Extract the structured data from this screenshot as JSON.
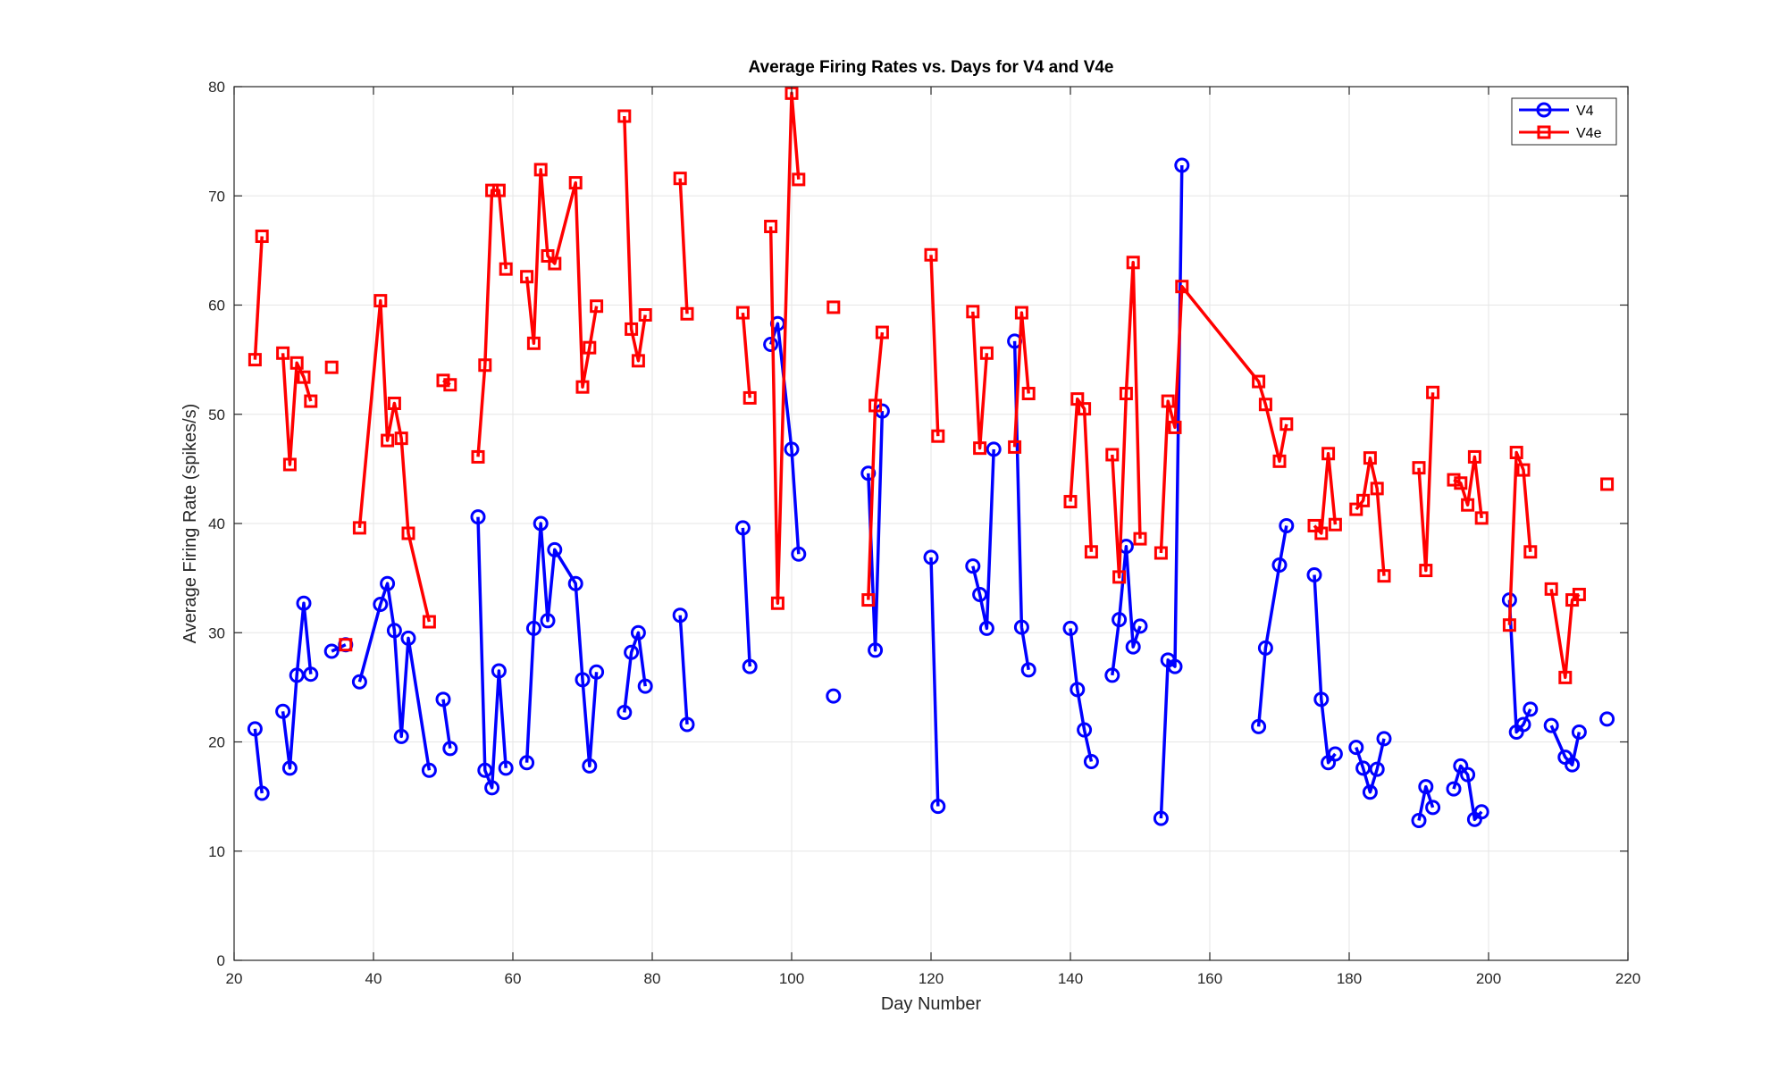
{
  "chart_data": {
    "type": "line",
    "title": "Average Firing Rates vs. Days for V4 and V4e",
    "xlabel": "Day Number",
    "ylabel": "Average Firing Rate (spikes/s)",
    "xlim": [
      20,
      220
    ],
    "ylim": [
      0,
      80
    ],
    "xticks": [
      20,
      40,
      60,
      80,
      100,
      120,
      140,
      160,
      180,
      200,
      220
    ],
    "yticks": [
      0,
      10,
      20,
      30,
      40,
      50,
      60,
      70,
      80
    ],
    "grid": true,
    "legend_position": "top-right",
    "series": [
      {
        "name": "V4",
        "color": "#0000ff",
        "marker": "circle",
        "segments": [
          [
            [
              23,
              21.2
            ],
            [
              24,
              15.3
            ]
          ],
          [
            [
              27,
              22.8
            ],
            [
              28,
              17.6
            ],
            [
              29,
              26.1
            ],
            [
              30,
              32.7
            ],
            [
              31,
              26.2
            ]
          ],
          [
            [
              34,
              28.3
            ],
            [
              36,
              28.9
            ]
          ],
          [
            [
              38,
              25.5
            ],
            [
              41,
              32.6
            ],
            [
              42,
              34.5
            ],
            [
              43,
              30.2
            ],
            [
              44,
              20.5
            ],
            [
              45,
              29.5
            ],
            [
              48,
              17.4
            ]
          ],
          [
            [
              50,
              23.9
            ],
            [
              51,
              19.4
            ]
          ],
          [
            [
              55,
              40.6
            ],
            [
              56,
              17.4
            ],
            [
              57,
              15.8
            ],
            [
              58,
              26.5
            ],
            [
              59,
              17.6
            ]
          ],
          [
            [
              62,
              18.1
            ],
            [
              63,
              30.4
            ],
            [
              64,
              40.0
            ],
            [
              65,
              31.1
            ],
            [
              66,
              37.6
            ],
            [
              69,
              34.5
            ],
            [
              70,
              25.7
            ],
            [
              71,
              17.8
            ],
            [
              72,
              26.4
            ]
          ],
          [
            [
              76,
              22.7
            ],
            [
              77,
              28.2
            ],
            [
              78,
              30.0
            ],
            [
              79,
              25.1
            ]
          ],
          [
            [
              84,
              31.6
            ],
            [
              85,
              21.6
            ]
          ],
          [
            [
              93,
              39.6
            ],
            [
              94,
              26.9
            ]
          ],
          [
            [
              97,
              56.4
            ],
            [
              98,
              58.3
            ],
            [
              100,
              46.8
            ],
            [
              101,
              37.2
            ]
          ],
          [
            [
              106,
              24.2
            ]
          ],
          [
            [
              111,
              44.6
            ],
            [
              112,
              28.4
            ],
            [
              113,
              50.3
            ]
          ],
          [
            [
              120,
              36.9
            ],
            [
              121,
              14.1
            ]
          ],
          [
            [
              126,
              36.1
            ],
            [
              127,
              33.5
            ],
            [
              128,
              30.4
            ],
            [
              129,
              46.8
            ]
          ],
          [
            [
              132,
              56.7
            ],
            [
              133,
              30.5
            ],
            [
              134,
              26.6
            ]
          ],
          [
            [
              140,
              30.4
            ],
            [
              141,
              24.8
            ],
            [
              142,
              21.1
            ],
            [
              143,
              18.2
            ]
          ],
          [
            [
              146,
              26.1
            ],
            [
              147,
              31.2
            ],
            [
              148,
              37.9
            ],
            [
              149,
              28.7
            ],
            [
              150,
              30.6
            ]
          ],
          [
            [
              153,
              13.0
            ],
            [
              154,
              27.5
            ],
            [
              155,
              26.9
            ],
            [
              156,
              72.8
            ]
          ],
          [
            [
              167,
              21.4
            ],
            [
              168,
              28.6
            ],
            [
              170,
              36.2
            ],
            [
              171,
              39.8
            ]
          ],
          [
            [
              175,
              35.3
            ],
            [
              176,
              23.9
            ],
            [
              177,
              18.1
            ],
            [
              178,
              18.9
            ]
          ],
          [
            [
              181,
              19.5
            ],
            [
              182,
              17.6
            ],
            [
              183,
              15.4
            ],
            [
              184,
              17.5
            ],
            [
              185,
              20.3
            ]
          ],
          [
            [
              190,
              12.8
            ],
            [
              191,
              15.9
            ],
            [
              192,
              14.0
            ]
          ],
          [
            [
              195,
              15.7
            ],
            [
              196,
              17.8
            ],
            [
              197,
              17.0
            ],
            [
              198,
              12.9
            ],
            [
              199,
              13.6
            ]
          ],
          [
            [
              203,
              33.0
            ],
            [
              204,
              20.9
            ],
            [
              205,
              21.6
            ],
            [
              206,
              23.0
            ]
          ],
          [
            [
              209,
              21.5
            ],
            [
              211,
              18.6
            ],
            [
              212,
              17.9
            ],
            [
              213,
              20.9
            ]
          ],
          [
            [
              217,
              22.1
            ]
          ]
        ]
      },
      {
        "name": "V4e",
        "color": "#ff0000",
        "marker": "square",
        "segments": [
          [
            [
              23,
              55.0
            ],
            [
              24,
              66.3
            ]
          ],
          [
            [
              27,
              55.6
            ],
            [
              28,
              45.4
            ],
            [
              29,
              54.7
            ],
            [
              30,
              53.4
            ],
            [
              31,
              51.2
            ]
          ],
          [
            [
              34,
              54.3
            ]
          ],
          [
            [
              36,
              28.9
            ]
          ],
          [
            [
              38,
              39.6
            ],
            [
              41,
              60.4
            ],
            [
              42,
              47.6
            ],
            [
              43,
              51.0
            ],
            [
              44,
              47.8
            ],
            [
              45,
              39.1
            ],
            [
              48,
              31.0
            ]
          ],
          [
            [
              50,
              53.1
            ],
            [
              51,
              52.7
            ]
          ],
          [
            [
              55,
              46.1
            ],
            [
              56,
              54.5
            ],
            [
              57,
              70.5
            ],
            [
              58,
              70.5
            ],
            [
              59,
              63.3
            ]
          ],
          [
            [
              62,
              62.6
            ],
            [
              63,
              56.5
            ],
            [
              64,
              72.4
            ],
            [
              65,
              64.5
            ],
            [
              66,
              63.8
            ],
            [
              69,
              71.2
            ],
            [
              70,
              52.5
            ],
            [
              71,
              56.1
            ],
            [
              72,
              59.9
            ]
          ],
          [
            [
              76,
              77.3
            ],
            [
              77,
              57.8
            ],
            [
              78,
              54.9
            ],
            [
              79,
              59.1
            ]
          ],
          [
            [
              84,
              71.6
            ],
            [
              85,
              59.2
            ]
          ],
          [
            [
              93,
              59.3
            ],
            [
              94,
              51.5
            ]
          ],
          [
            [
              97,
              67.2
            ],
            [
              98,
              32.7
            ],
            [
              100,
              79.4
            ],
            [
              101,
              71.5
            ]
          ],
          [
            [
              106,
              59.8
            ]
          ],
          [
            [
              111,
              33.0
            ],
            [
              112,
              50.8
            ],
            [
              113,
              57.5
            ]
          ],
          [
            [
              120,
              64.6
            ],
            [
              121,
              48.0
            ]
          ],
          [
            [
              126,
              59.4
            ],
            [
              127,
              46.9
            ],
            [
              128,
              55.6
            ]
          ],
          [
            [
              132,
              47.0
            ],
            [
              133,
              59.3
            ],
            [
              134,
              51.9
            ]
          ],
          [
            [
              140,
              42.0
            ],
            [
              141,
              51.4
            ],
            [
              142,
              50.5
            ],
            [
              143,
              37.4
            ]
          ],
          [
            [
              146,
              46.3
            ],
            [
              147,
              35.1
            ],
            [
              148,
              51.9
            ],
            [
              149,
              63.9
            ],
            [
              150,
              38.6
            ]
          ],
          [
            [
              153,
              37.3
            ],
            [
              154,
              51.2
            ],
            [
              155,
              48.8
            ],
            [
              156,
              61.7
            ],
            [
              167,
              53.0
            ],
            [
              168,
              50.9
            ],
            [
              170,
              45.7
            ],
            [
              171,
              49.1
            ]
          ],
          [
            [
              175,
              39.8
            ],
            [
              176,
              39.1
            ],
            [
              177,
              46.4
            ],
            [
              178,
              39.9
            ]
          ],
          [
            [
              181,
              41.3
            ],
            [
              182,
              42.1
            ],
            [
              183,
              46.0
            ],
            [
              184,
              43.2
            ],
            [
              185,
              35.2
            ]
          ],
          [
            [
              190,
              45.1
            ],
            [
              191,
              35.7
            ],
            [
              192,
              52.0
            ]
          ],
          [
            [
              195,
              44.0
            ],
            [
              196,
              43.7
            ],
            [
              197,
              41.7
            ],
            [
              198,
              46.1
            ],
            [
              199,
              40.5
            ]
          ],
          [
            [
              203,
              30.7
            ],
            [
              204,
              46.5
            ],
            [
              205,
              44.9
            ],
            [
              206,
              37.4
            ]
          ],
          [
            [
              209,
              34.0
            ],
            [
              211,
              25.9
            ],
            [
              212,
              33.0
            ],
            [
              213,
              33.5
            ]
          ],
          [
            [
              217,
              43.6
            ]
          ]
        ]
      }
    ]
  }
}
